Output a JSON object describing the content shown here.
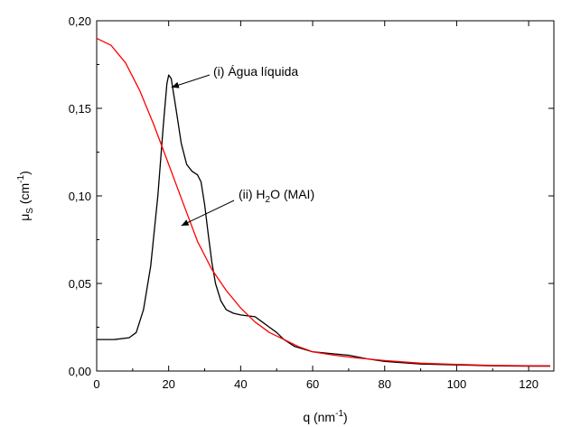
{
  "chart_data": {
    "type": "line",
    "xlabel": "q (nm-1)",
    "ylabel": "μS (cm-1)",
    "xlim": [
      0,
      127
    ],
    "ylim": [
      0,
      0.2
    ],
    "xticks": [
      0,
      20,
      40,
      60,
      80,
      100,
      120
    ],
    "xtick_labels": [
      "0",
      "20",
      "40",
      "60",
      "80",
      "100",
      "120"
    ],
    "yticks": [
      0,
      0.05,
      0.1,
      0.15,
      0.2
    ],
    "ytick_labels": [
      "0,00",
      "0,05",
      "0,10",
      "0,15",
      "0,20"
    ],
    "grid": false,
    "series": [
      {
        "name": "(i) Água líquida",
        "color": "#000000",
        "points": [
          [
            0,
            0.018
          ],
          [
            5,
            0.018
          ],
          [
            9,
            0.019
          ],
          [
            11,
            0.022
          ],
          [
            13,
            0.035
          ],
          [
            15,
            0.06
          ],
          [
            17,
            0.1
          ],
          [
            18.5,
            0.14
          ],
          [
            19.5,
            0.164
          ],
          [
            20,
            0.169
          ],
          [
            20.7,
            0.167
          ],
          [
            22,
            0.15
          ],
          [
            23.5,
            0.13
          ],
          [
            25,
            0.118
          ],
          [
            26.5,
            0.114
          ],
          [
            28,
            0.112
          ],
          [
            29,
            0.108
          ],
          [
            30,
            0.095
          ],
          [
            31,
            0.078
          ],
          [
            32,
            0.062
          ],
          [
            33,
            0.05
          ],
          [
            34.5,
            0.04
          ],
          [
            36,
            0.035
          ],
          [
            38,
            0.033
          ],
          [
            40,
            0.032
          ],
          [
            42,
            0.0315
          ],
          [
            44,
            0.031
          ],
          [
            46,
            0.028
          ],
          [
            48,
            0.025
          ],
          [
            50,
            0.022
          ],
          [
            52,
            0.018
          ],
          [
            55,
            0.014
          ],
          [
            60,
            0.011
          ],
          [
            65,
            0.01
          ],
          [
            70,
            0.009
          ],
          [
            75,
            0.007
          ],
          [
            80,
            0.0055
          ],
          [
            90,
            0.004
          ],
          [
            100,
            0.0035
          ],
          [
            110,
            0.003
          ],
          [
            120,
            0.0028
          ],
          [
            126,
            0.0028
          ]
        ]
      },
      {
        "name": "(ii) H2O (MAI)",
        "color": "#ff0000",
        "points": [
          [
            0,
            0.19
          ],
          [
            4,
            0.186
          ],
          [
            8,
            0.176
          ],
          [
            12,
            0.16
          ],
          [
            16,
            0.14
          ],
          [
            20,
            0.118
          ],
          [
            24,
            0.096
          ],
          [
            28,
            0.074
          ],
          [
            32,
            0.058
          ],
          [
            36,
            0.046
          ],
          [
            40,
            0.036
          ],
          [
            44,
            0.028
          ],
          [
            48,
            0.022
          ],
          [
            52,
            0.018
          ],
          [
            56,
            0.014
          ],
          [
            60,
            0.011
          ],
          [
            66,
            0.009
          ],
          [
            72,
            0.0075
          ],
          [
            80,
            0.006
          ],
          [
            90,
            0.0045
          ],
          [
            100,
            0.0038
          ],
          [
            110,
            0.0032
          ],
          [
            120,
            0.003
          ],
          [
            126,
            0.003
          ]
        ]
      }
    ],
    "annotations": [
      {
        "text_main": "(i) Água líquida",
        "arrow_to": [
          20.8,
          0.162
        ]
      },
      {
        "text_pre": "(ii) H",
        "sub": "2",
        "text_post": "O (MAI)",
        "arrow_to": [
          23.5,
          0.083
        ]
      }
    ]
  },
  "labels": {
    "x_main": "q (nm",
    "x_sup": "-1",
    "x_close": ")",
    "y_main": "μ",
    "y_sub": "S",
    "y_mid": " (cm",
    "y_sup": "-1",
    "y_close": ")"
  }
}
